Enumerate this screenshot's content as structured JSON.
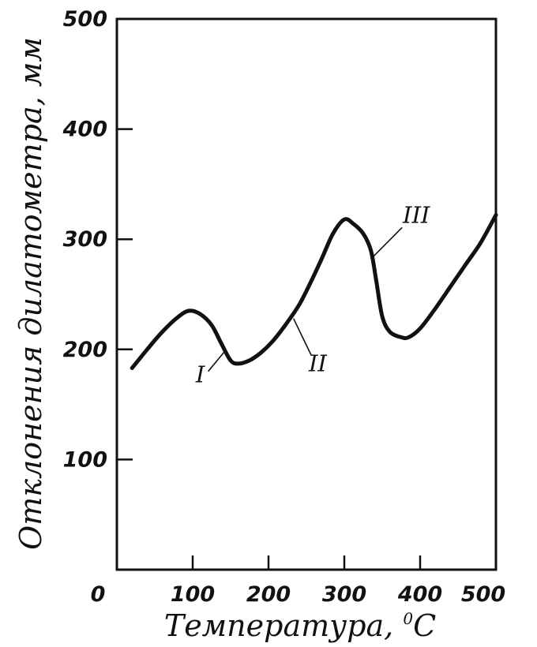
{
  "chart_data": {
    "type": "line",
    "xlabel": "Температура, ",
    "xlabel_unit_sup": "0",
    "xlabel_unit": "C",
    "ylabel": "Отклонения дилатометра, мм",
    "xlim": [
      0,
      500
    ],
    "ylim": [
      0,
      500
    ],
    "x_ticks": [
      "0",
      "100",
      "200",
      "300",
      "400",
      "500"
    ],
    "y_ticks": [
      "100",
      "200",
      "300",
      "400",
      "500"
    ],
    "grid": false,
    "series": [
      {
        "points": [
          [
            20,
            183
          ],
          [
            40,
            200
          ],
          [
            60,
            216
          ],
          [
            80,
            229
          ],
          [
            95,
            235
          ],
          [
            110,
            232
          ],
          [
            125,
            222
          ],
          [
            138,
            205
          ],
          [
            150,
            190
          ],
          [
            160,
            187
          ],
          [
            175,
            190
          ],
          [
            190,
            197
          ],
          [
            205,
            207
          ],
          [
            220,
            220
          ],
          [
            240,
            240
          ],
          [
            255,
            260
          ],
          [
            270,
            282
          ],
          [
            285,
            305
          ],
          [
            300,
            318
          ],
          [
            312,
            314
          ],
          [
            325,
            305
          ],
          [
            335,
            290
          ],
          [
            342,
            263
          ],
          [
            350,
            230
          ],
          [
            360,
            216
          ],
          [
            375,
            211
          ],
          [
            385,
            211
          ],
          [
            400,
            219
          ],
          [
            420,
            237
          ],
          [
            440,
            257
          ],
          [
            460,
            277
          ],
          [
            480,
            297
          ],
          [
            500,
            322
          ]
        ]
      }
    ],
    "annotations": [
      {
        "text": "I",
        "x": 110,
        "y": 170,
        "target": [
          142,
          198
        ]
      },
      {
        "text": "II",
        "x": 265,
        "y": 180,
        "target": [
          233,
          228
        ]
      },
      {
        "text": "III",
        "x": 395,
        "y": 315,
        "target": [
          335,
          282
        ]
      }
    ]
  }
}
